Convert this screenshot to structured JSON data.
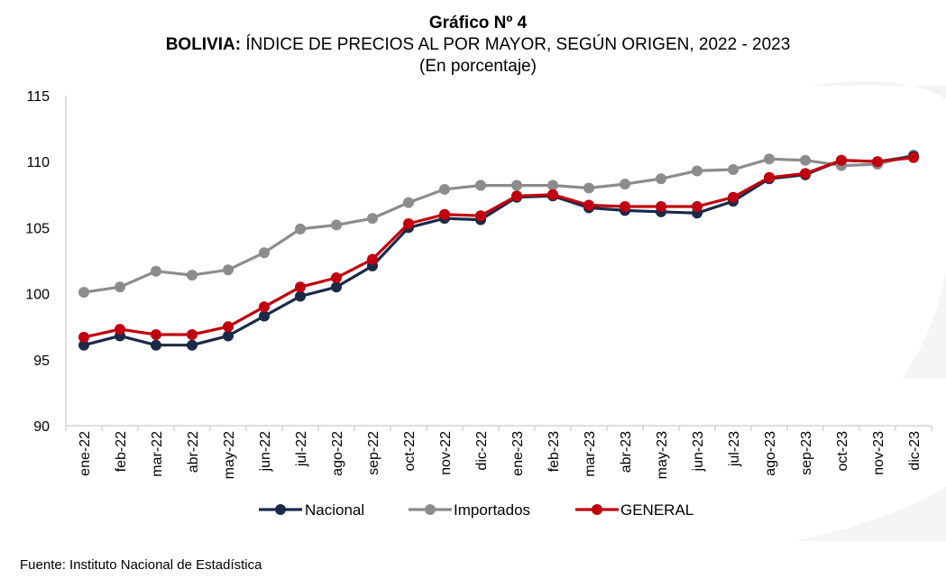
{
  "title": {
    "line1": "Gráfico Nº 4",
    "line2_bold": "BOLIVIA:",
    "line2_rest": " ÍNDICE DE PRECIOS AL POR MAYOR, SEGÚN ORIGEN, 2022 - 2023",
    "line3": "(En porcentaje)"
  },
  "source": "Fuente: Instituto Nacional de Estadística",
  "chart_data": {
    "type": "line",
    "categories": [
      "ene-22",
      "feb-22",
      "mar-22",
      "abr-22",
      "may-22",
      "jun-22",
      "jul-22",
      "ago-22",
      "sep-22",
      "oct-22",
      "nov-22",
      "dic-22",
      "ene-23",
      "feb-23",
      "mar-23",
      "abr-23",
      "may-23",
      "jun-23",
      "jul-23",
      "ago-23",
      "sep-23",
      "oct-23",
      "nov-23",
      "dic-23"
    ],
    "ylim": [
      90,
      115
    ],
    "yticks": [
      "90",
      "95",
      "100",
      "105",
      "110",
      "115"
    ],
    "grid": false,
    "legend_position": "bottom",
    "series": [
      {
        "name": "Nacional",
        "color": "#1b2a47",
        "values": [
          96.1,
          96.8,
          96.1,
          96.1,
          96.8,
          98.3,
          99.8,
          100.5,
          102.1,
          105.0,
          105.7,
          105.6,
          107.3,
          107.4,
          106.5,
          106.3,
          106.2,
          106.1,
          107.0,
          108.7,
          109.0,
          110.1,
          110.0,
          110.4
        ]
      },
      {
        "name": "Importados",
        "color": "#8c8c8c",
        "values": [
          100.1,
          100.5,
          101.7,
          101.4,
          101.8,
          103.1,
          104.9,
          105.2,
          105.7,
          106.9,
          107.9,
          108.2,
          108.2,
          108.2,
          108.0,
          108.3,
          108.7,
          109.3,
          109.4,
          110.2,
          110.1,
          109.7,
          109.8,
          110.5
        ]
      },
      {
        "name": "GENERAL",
        "color": "#c0000f",
        "values": [
          96.7,
          97.3,
          96.9,
          96.9,
          97.5,
          99.0,
          100.5,
          101.2,
          102.6,
          105.3,
          106.0,
          105.9,
          107.4,
          107.5,
          106.7,
          106.6,
          106.6,
          106.6,
          107.3,
          108.8,
          109.1,
          110.1,
          110.0,
          110.3
        ]
      }
    ]
  }
}
